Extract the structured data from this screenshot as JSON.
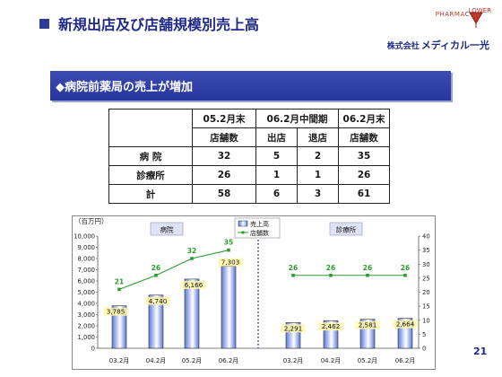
{
  "header": {
    "title": "新規出店及び店舗規模別売上高",
    "brand_top": "PHARMAC",
    "brand_lower": "LOWER",
    "brand_company_prefix": "株式会社",
    "brand_company_name": "メディカル一光"
  },
  "banner": {
    "text": "◆病院前薬局の売上が増加"
  },
  "table": {
    "headers_row1": [
      "05.2月末",
      "06.2月中間期",
      "06.2月末"
    ],
    "headers_row2": [
      "店舗数",
      "出店",
      "退店",
      "店舗数"
    ],
    "rows": [
      {
        "label": "病 院",
        "values": [
          "32",
          "5",
          "2",
          "35"
        ]
      },
      {
        "label": "診療所",
        "values": [
          "26",
          "1",
          "1",
          "26"
        ]
      },
      {
        "label": "計",
        "values": [
          "58",
          "6",
          "3",
          "61"
        ]
      }
    ]
  },
  "chart_data": {
    "type": "bar",
    "unit_label": "（百万円）",
    "legend": {
      "sales": "売上高",
      "stores": "店舗数"
    },
    "left_axis_ticks": [
      "10,000",
      "9,000",
      "8,000",
      "7,000",
      "6,000",
      "5,000",
      "4,000",
      "3,000",
      "2,000",
      "1,000",
      "0"
    ],
    "right_axis_ticks": [
      "40",
      "35",
      "30",
      "25",
      "20",
      "15",
      "10",
      "5",
      "0"
    ],
    "ylim_left": [
      0,
      10000
    ],
    "ylim_right": [
      0,
      40
    ],
    "groups": [
      {
        "name": "病院",
        "categories": [
          "03.2月",
          "04.2月",
          "05.2月",
          "06.2月"
        ],
        "sales": [
          3785,
          4740,
          6166,
          7303
        ],
        "sales_labels": [
          "3,785",
          "4,740",
          "6,166",
          "7,303"
        ],
        "stores": [
          21,
          26,
          32,
          35
        ],
        "stores_labels": [
          "21",
          "26",
          "32",
          "35"
        ]
      },
      {
        "name": "診療所",
        "categories": [
          "03.2月",
          "04.2月",
          "05.2月",
          "06.2月"
        ],
        "sales": [
          2291,
          2462,
          2581,
          2664
        ],
        "sales_labels": [
          "2,291",
          "2,462",
          "2,581",
          "2,664"
        ],
        "stores": [
          26,
          26,
          26,
          26
        ],
        "stores_labels": [
          "26",
          "26",
          "26",
          "26"
        ]
      }
    ],
    "colors": {
      "bar_top": "#ffffff",
      "bar_bottom": "#5a78d8",
      "bar_stroke": "#333333",
      "line": "#2e9a2e",
      "divider": "#2f3fb0",
      "label_box": "#fff7a8",
      "legend_box": "#dde3f5"
    }
  },
  "page_number": "21"
}
